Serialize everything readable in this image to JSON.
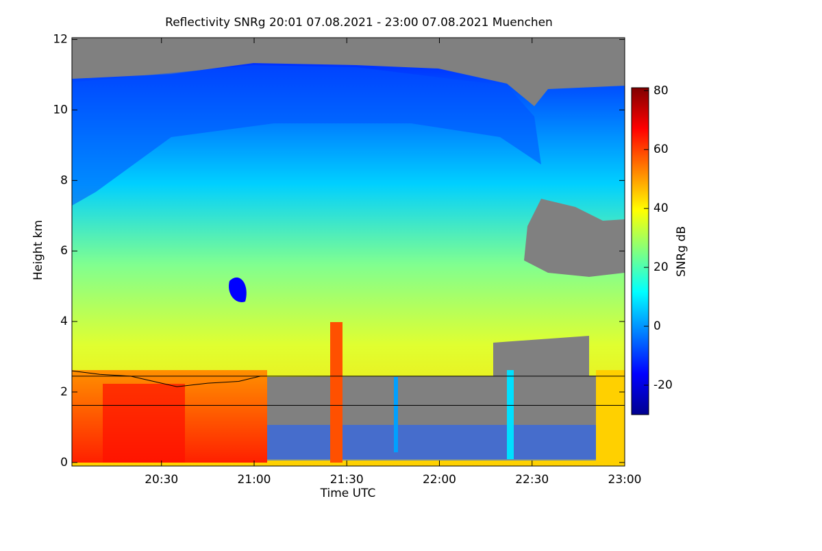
{
  "chart_data": {
    "type": "heatmap",
    "title": "Reflectivity SNRg   20:01 07.08.2021 - 23:00 07.08.2021 Muenchen",
    "x_label": "Time UTC",
    "y_label": "Height km",
    "colorbar_label": "SNRg dB",
    "xlim": [
      1201,
      1380
    ],
    "xticks": [
      {
        "value": 1230,
        "label": "20:30"
      },
      {
        "value": 1260,
        "label": "21:00"
      },
      {
        "value": 1290,
        "label": "21:30"
      },
      {
        "value": 1320,
        "label": "22:00"
      },
      {
        "value": 1350,
        "label": "22:30"
      },
      {
        "value": 1380,
        "label": "23:00"
      }
    ],
    "ylim": [
      -0.1,
      12.05
    ],
    "yticks": [
      0,
      2,
      4,
      6,
      8,
      10,
      12
    ],
    "clim": [
      -30,
      81
    ],
    "cticks": [
      -20,
      0,
      20,
      40,
      60,
      80
    ],
    "colormap": [
      "#00008f",
      "#0000ff",
      "#0080ff",
      "#00ffff",
      "#80ff80",
      "#ffff00",
      "#ff8000",
      "#ff0000",
      "#800000"
    ],
    "series": [
      {
        "color": "#000000",
        "x": [
          1201,
          1210,
          1220,
          1230,
          1235,
          1245,
          1255,
          1262
        ],
        "values": [
          2.6,
          2.5,
          2.45,
          2.25,
          2.15,
          2.25,
          2.3,
          2.45
        ]
      }
    ],
    "hlines": [
      2.45,
      1.62
    ]
  }
}
